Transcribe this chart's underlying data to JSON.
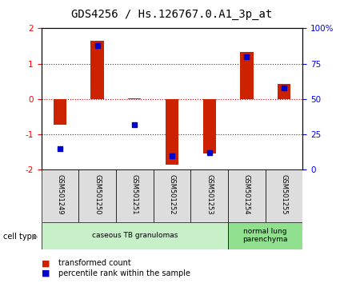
{
  "title": "GDS4256 / Hs.126767.0.A1_3p_at",
  "samples": [
    "GSM501249",
    "GSM501250",
    "GSM501251",
    "GSM501252",
    "GSM501253",
    "GSM501254",
    "GSM501255"
  ],
  "transformed_counts": [
    -0.72,
    1.65,
    0.02,
    -1.85,
    -1.55,
    1.32,
    0.42
  ],
  "percentile_ranks": [
    15,
    88,
    32,
    10,
    12,
    80,
    58
  ],
  "ylim_left": [
    -2,
    2
  ],
  "ylim_right": [
    0,
    100
  ],
  "yticks_left": [
    -2,
    -1,
    0,
    1,
    2
  ],
  "yticks_right": [
    0,
    25,
    50,
    75,
    100
  ],
  "ytick_labels_right": [
    "0",
    "25",
    "50",
    "75",
    "100%"
  ],
  "bar_color": "#cc2200",
  "dot_color": "#0000cc",
  "zero_line_color": "#cc0000",
  "grid_color": "#333333",
  "ct_groups": [
    {
      "start": 0,
      "end": 5,
      "label": "caseous TB granulomas",
      "color": "#c8f0c8"
    },
    {
      "start": 5,
      "end": 7,
      "label": "normal lung\nparenchyma",
      "color": "#90e090"
    }
  ],
  "title_fontsize": 10,
  "tick_fontsize": 7.5,
  "bar_width": 0.35
}
